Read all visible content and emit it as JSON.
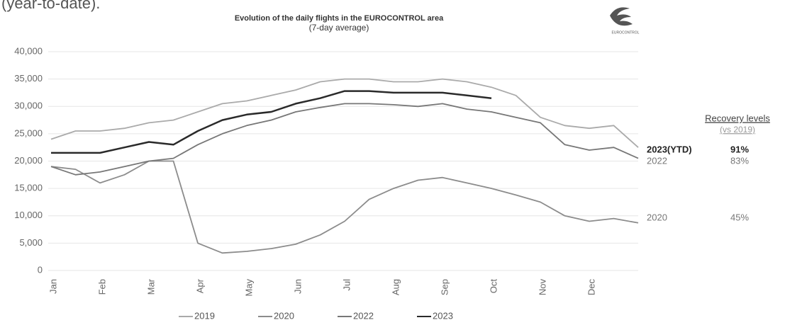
{
  "header_text": "(year-to-date).",
  "chart_data": {
    "type": "line",
    "title": "Evolution of the daily flights in the EUROCONTROL area",
    "subtitle": "(7-day average)",
    "logo_text": "EUROCONTROL",
    "categories": [
      "Jan",
      null,
      "Feb",
      null,
      "Mar",
      null,
      "Apr",
      null,
      "May",
      null,
      "Jun",
      null,
      "Jul",
      null,
      "Aug",
      null,
      "Sep",
      null,
      "Oct",
      null,
      "Nov",
      null,
      "Dec",
      null,
      null
    ],
    "series": [
      {
        "name": "2019",
        "color": "#aaaaaa",
        "values": [
          24000,
          25500,
          25500,
          26000,
          27000,
          27500,
          29000,
          30500,
          31000,
          32000,
          33000,
          34500,
          35000,
          35000,
          34500,
          34500,
          35000,
          34500,
          33500,
          32000,
          28000,
          26500,
          26000,
          26500,
          22500
        ]
      },
      {
        "name": "2020",
        "color": "#8c8c8c",
        "values": [
          19000,
          18500,
          16000,
          17500,
          20000,
          20000,
          5000,
          3200,
          3500,
          4000,
          4800,
          6500,
          9000,
          13000,
          15000,
          16500,
          17000,
          16000,
          15000,
          13800,
          12500,
          10000,
          9000,
          9500,
          8700
        ]
      },
      {
        "name": "2022",
        "color": "#777777",
        "values": [
          19000,
          17500,
          18000,
          19000,
          20000,
          20500,
          23000,
          25000,
          26500,
          27500,
          29000,
          29800,
          30500,
          30500,
          30300,
          30000,
          30500,
          29500,
          29000,
          28000,
          27000,
          23000,
          22000,
          22500,
          20500
        ]
      },
      {
        "name": "2023",
        "color": "#2a2a2a",
        "values": [
          21500,
          21500,
          21500,
          22500,
          23500,
          23000,
          25500,
          27500,
          28500,
          29000,
          30500,
          31500,
          32800,
          32800,
          32500,
          32500,
          32500,
          32000,
          31500,
          null,
          null,
          null,
          null,
          null,
          null
        ]
      }
    ],
    "ylim": [
      0,
      40000
    ],
    "yticks": [
      0,
      {
        "value": 5000,
        "label": "5,000"
      },
      {
        "value": 10000,
        "label": "10,000"
      },
      {
        "value": 15000,
        "label": "15,000"
      },
      {
        "value": 20000,
        "label": "20,000"
      },
      {
        "value": 25000,
        "label": "25,000"
      },
      {
        "value": 30000,
        "label": "30,000"
      },
      {
        "value": 35000,
        "label": "35,000"
      },
      {
        "value": 40000,
        "label": "40,000"
      }
    ],
    "grid": true,
    "legend": "bottom",
    "recovery": {
      "title": "Recovery levels",
      "subtitle": "(vs 2019)",
      "rows": [
        {
          "label": "2023(YTD)",
          "value": "91%"
        },
        {
          "label": "2022",
          "value": "83%"
        },
        {
          "label": "2020",
          "value": "45%"
        }
      ]
    }
  }
}
